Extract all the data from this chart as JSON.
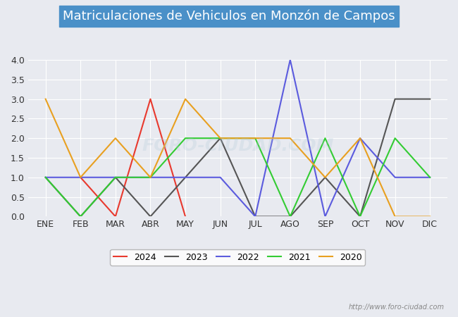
{
  "title": "Matriculaciones de Vehiculos en Monzón de Campos",
  "months": [
    "ENE",
    "FEB",
    "MAR",
    "ABR",
    "MAY",
    "JUN",
    "JUL",
    "AGO",
    "SEP",
    "OCT",
    "NOV",
    "DIC"
  ],
  "series": {
    "2024": {
      "color": "#e8392e",
      "data": [
        null,
        1,
        0,
        3,
        0,
        null,
        null,
        null,
        null,
        null,
        null,
        null
      ]
    },
    "2023": {
      "color": "#555555",
      "data": [
        1,
        0,
        1,
        0,
        1,
        2,
        0,
        0,
        1,
        0,
        3,
        3
      ]
    },
    "2022": {
      "color": "#5b5bde",
      "data": [
        1,
        1,
        1,
        1,
        1,
        1,
        0,
        4,
        0,
        2,
        1,
        1
      ]
    },
    "2021": {
      "color": "#33cc33",
      "data": [
        1,
        0,
        1,
        1,
        2,
        2,
        2,
        0,
        2,
        0,
        2,
        1
      ]
    },
    "2020": {
      "color": "#e8a020",
      "data": [
        3,
        1,
        2,
        1,
        3,
        2,
        2,
        2,
        1,
        2,
        0,
        0
      ]
    }
  },
  "ylim": [
    0,
    4.0
  ],
  "yticks": [
    0.0,
    0.5,
    1.0,
    1.5,
    2.0,
    2.5,
    3.0,
    3.5,
    4.0
  ],
  "background_color": "#e8eaf0",
  "plot_bg_color": "#e8eaf0",
  "title_bg_color": "#4a90c8",
  "title_color": "#ffffff",
  "watermark": "http://www.foro-ciudad.com",
  "watermark_center": "FORO-CIUDAD.COM"
}
